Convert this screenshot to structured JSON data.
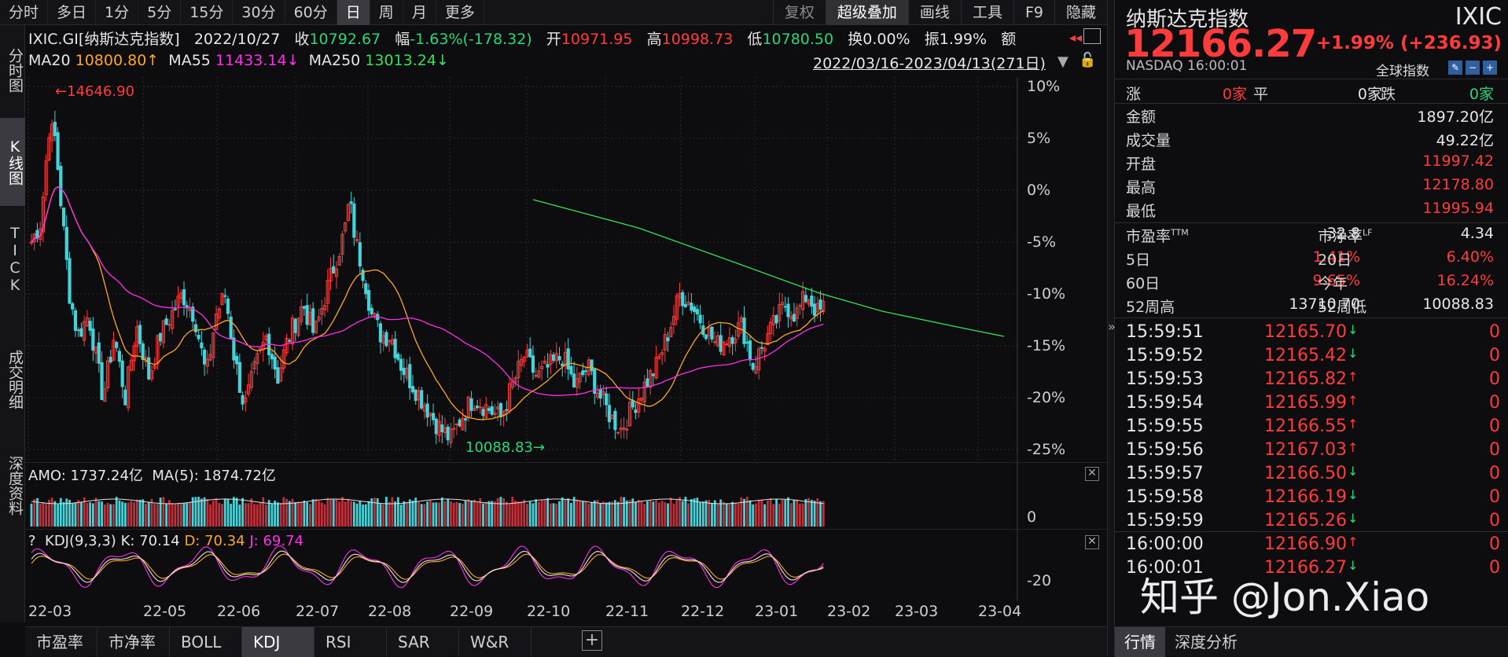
{
  "top_tabs": [
    "分时",
    "多日",
    "1分",
    "5分",
    "15分",
    "30分",
    "60分",
    "日",
    "周",
    "月",
    "更多"
  ],
  "top_tabs_active": "日",
  "top_right_tabs": [
    "复权",
    "超级叠加",
    "画线",
    "工具",
    "F9",
    "隐藏"
  ],
  "left_tabs": [
    "分时图",
    "K线图",
    "TICK",
    "成交明细",
    "深度资料"
  ],
  "info": {
    "code": "IXIC.GI[纳斯达克指数]",
    "date": "2022/10/27",
    "close_label": "收",
    "close": "10792.67",
    "chg_label": "幅",
    "chg": "-1.63%(-178.32)",
    "open_label": "开",
    "open": "10971.95",
    "high_label": "高",
    "high": "10998.73",
    "low_label": "低",
    "low": "10780.50",
    "turn_label": "换",
    "turn": "0.00%",
    "amp_label": "振",
    "amp": "1.99%",
    "amt_label": "额"
  },
  "ma": {
    "ma20_label": "MA20",
    "ma20": "10800.80↑",
    "ma55_label": "MA55",
    "ma55": "11433.14↓",
    "ma250_label": "MA250",
    "ma250": "13013.24↓",
    "range": "2022/03/16-2023/04/13(271日)"
  },
  "main_chart": {
    "y_axis": [
      "10%",
      "5%",
      "0%",
      "-5%",
      "-10%",
      "-15%",
      "-20%",
      "-25%"
    ],
    "high_label": "←14646.90",
    "low_label": "10088.83→"
  },
  "amo": {
    "label": "AMO: 1737.24亿",
    "ma_label": "MA(5): 1874.72亿",
    "axis": "0"
  },
  "kdj": {
    "prefix": "?",
    "label": "KDJ(9,3,3)",
    "k": "K: 70.14",
    "d": "D: 70.34",
    "j": "J: 69.74",
    "axis": "-20"
  },
  "x_axis": [
    "22-03",
    "22-05",
    "22-06",
    "22-07",
    "22-08",
    "22-09",
    "22-10",
    "22-11",
    "22-12",
    "23-01",
    "23-02",
    "23-03",
    "23-04"
  ],
  "bottom_tabs": [
    "市盈率",
    "市净率",
    "BOLL",
    "KDJ",
    "RSI",
    "SAR",
    "W&R"
  ],
  "bottom_tabs_active": "KDJ",
  "quote": {
    "name": "纳斯达克指数",
    "code": "IXIC",
    "price": "12166.27",
    "chg": "+1.99% (+236.93)",
    "exchange": "NASDAQ",
    "time": "16:00:01",
    "global_label": "全球指数",
    "up_label": "涨",
    "up": "0家",
    "flat_label": "平",
    "flat": "0家",
    "down_label": "跌",
    "down": "0家",
    "amount_label": "金额",
    "amount": "1897.20亿",
    "volume_label": "成交量",
    "volume": "49.22亿",
    "open_label": "开盘",
    "open": "11997.42",
    "high_label": "最高",
    "high": "12178.80",
    "low_label": "最低",
    "low": "11995.94",
    "pe_label": "市盈率",
    "pe_sup": "TTM",
    "pe": "32.8",
    "pb_label": "市净率",
    "pb_sup": "LF",
    "pb": "4.34",
    "d5_label": "5日",
    "d5": "1.41%",
    "d20_label": "20日",
    "d20": "6.40%",
    "d60_label": "60日",
    "d60": "9.65%",
    "ytd_label": "今年",
    "ytd": "16.24%",
    "w52h_label": "52周高",
    "w52h": "13710.70",
    "w52l_label": "52周低",
    "w52l": "10088.83"
  },
  "ticks": [
    {
      "time": "15:59:51",
      "price": "12165.70",
      "dir": "down",
      "vol": "0"
    },
    {
      "time": "15:59:52",
      "price": "12165.42",
      "dir": "down",
      "vol": "0"
    },
    {
      "time": "15:59:53",
      "price": "12165.82",
      "dir": "up",
      "vol": "0"
    },
    {
      "time": "15:59:54",
      "price": "12165.99",
      "dir": "up",
      "vol": "0"
    },
    {
      "time": "15:59:55",
      "price": "12166.55",
      "dir": "up",
      "vol": "0"
    },
    {
      "time": "15:59:56",
      "price": "12167.03",
      "dir": "up",
      "vol": "0"
    },
    {
      "time": "15:59:57",
      "price": "12166.50",
      "dir": "down",
      "vol": "0"
    },
    {
      "time": "15:59:58",
      "price": "12166.19",
      "dir": "down",
      "vol": "0"
    },
    {
      "time": "15:59:59",
      "price": "12165.26",
      "dir": "down",
      "vol": "0"
    },
    {
      "time": "16:00:00",
      "price": "12166.90",
      "dir": "up",
      "vol": "0"
    },
    {
      "time": "16:00:01",
      "price": "12166.27",
      "dir": "down",
      "vol": "0"
    }
  ],
  "right_tabs": [
    "行情",
    "深度分析"
  ],
  "right_tabs_active": "行情",
  "watermark": "知乎 @Jon.Xiao",
  "colors": {
    "up": "#ff3b3b",
    "down": "#28d77a",
    "ma20": "#ffa621",
    "ma55": "#ff2fe9",
    "ma250": "#35e05a"
  }
}
